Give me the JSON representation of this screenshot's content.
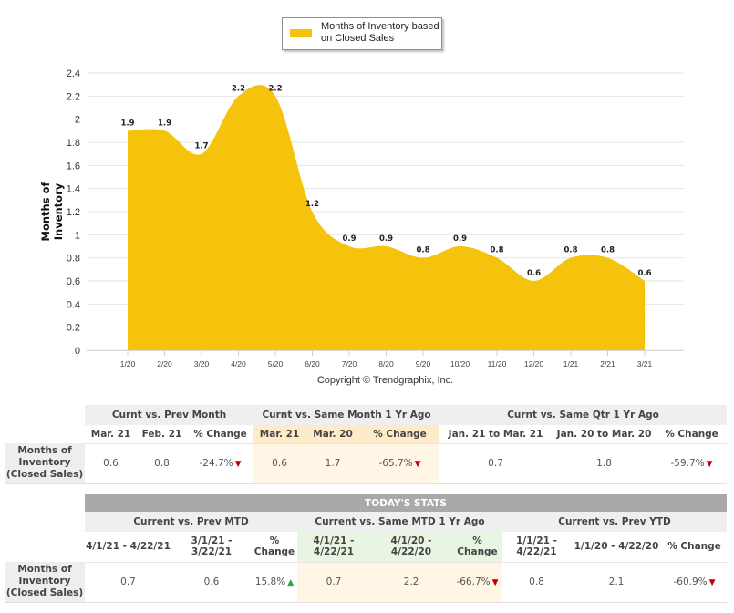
{
  "legend": {
    "label_line1": "Months of Inventory based",
    "label_line2": "on Closed Sales",
    "color": "#F5C30C"
  },
  "copyright": "Copyright © Trendgraphix, Inc.",
  "chart_data": {
    "type": "area",
    "title": "",
    "xlabel": "",
    "ylabel": "Months of Inventory",
    "ylim": [
      0,
      2.4
    ],
    "yticks": [
      "0",
      "0.2",
      "0.4",
      "0.6",
      "0.8",
      "1",
      "1.2",
      "1.4",
      "1.6",
      "1.8",
      "2",
      "2.2",
      "2.4"
    ],
    "grid": true,
    "legend_position": "top-center",
    "categories": [
      "1/20",
      "2/20",
      "3/20",
      "4/20",
      "5/20",
      "6/20",
      "7/20",
      "8/20",
      "9/20",
      "10/20",
      "11/20",
      "12/20",
      "1/21",
      "2/21",
      "3/21"
    ],
    "series": [
      {
        "name": "Months of Inventory based on Closed Sales",
        "color": "#F5C30C",
        "values": [
          1.9,
          1.9,
          1.7,
          2.2,
          2.2,
          1.2,
          0.9,
          0.9,
          0.8,
          0.9,
          0.8,
          0.6,
          0.8,
          0.8,
          0.6
        ],
        "labels": [
          "1.9",
          "1.9",
          "1.7",
          "2.2",
          "2.2",
          "1.2",
          "0.9",
          "0.9",
          "0.8",
          "0.9",
          "0.8",
          "0.6",
          "0.8",
          "0.8",
          "0.6"
        ]
      }
    ]
  },
  "table1": {
    "row_label": "Months of Inventory (Closed Sales)",
    "groups": [
      "Curnt vs. Prev Month",
      "Curnt vs. Same Month 1 Yr Ago",
      "Curnt vs. Same Qtr 1 Yr Ago"
    ],
    "headers": [
      "Mar. 21",
      "Feb. 21",
      "% Change",
      "Mar. 21",
      "Mar. 20",
      "% Change",
      "Jan. 21 to Mar. 21",
      "Jan. 20 to Mar. 20",
      "% Change"
    ],
    "values": [
      "0.6",
      "0.8",
      "-24.7%",
      "0.6",
      "1.7",
      "-65.7%",
      "0.7",
      "1.8",
      "-59.7%"
    ],
    "trends": [
      "",
      "",
      "down",
      "",
      "",
      "down",
      "",
      "",
      "down"
    ]
  },
  "table2": {
    "title": "TODAY'S STATS",
    "row_label": "Months of Inventory (Closed Sales)",
    "groups": [
      "Current vs. Prev MTD",
      "Current vs. Same MTD 1 Yr Ago",
      "Current vs. Prev YTD"
    ],
    "headers": [
      "4/1/21 - 4/22/21",
      "3/1/21 - 3/22/21",
      "% Change",
      "4/1/21 - 4/22/21",
      "4/1/20 - 4/22/20",
      "% Change",
      "1/1/21 - 4/22/21",
      "1/1/20 - 4/22/20",
      "% Change"
    ],
    "values": [
      "0.7",
      "0.6",
      "15.8%",
      "0.7",
      "2.2",
      "-66.7%",
      "0.8",
      "2.1",
      "-60.9%"
    ],
    "trends": [
      "",
      "",
      "up",
      "",
      "",
      "down",
      "",
      "",
      "down"
    ]
  },
  "icons": {
    "down": "▼",
    "up": "▲"
  }
}
